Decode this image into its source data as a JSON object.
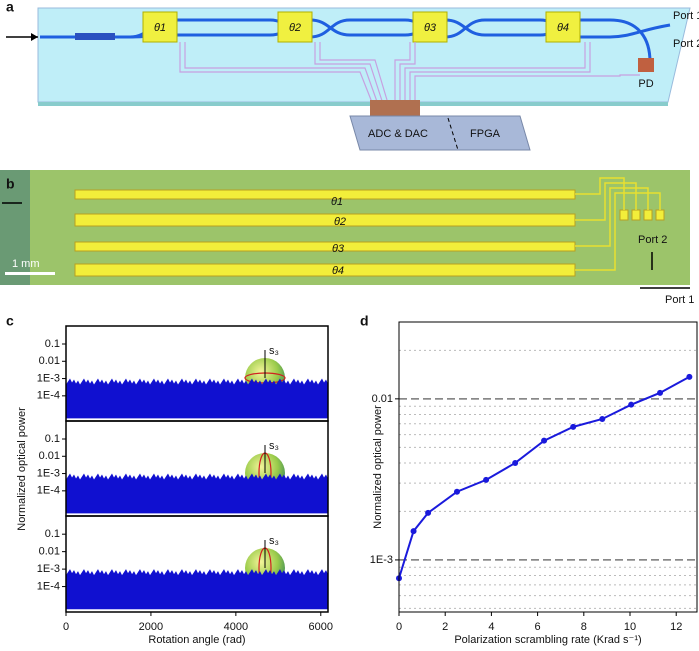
{
  "panels": {
    "a": {
      "label": "a",
      "thetas": [
        "θ1",
        "θ2",
        "θ3",
        "θ4"
      ],
      "port1": "Port 1",
      "port2": "Port 2",
      "pd": "PD",
      "adc": "ADC & DAC",
      "fpga": "FPGA"
    },
    "b": {
      "label": "b",
      "thetas": [
        "θ1",
        "θ2",
        "θ3",
        "θ4"
      ],
      "scale": "1 mm",
      "port2": "Port 2",
      "port1": "Port 1"
    },
    "c": {
      "label": "c",
      "insets": [
        [
          "s₃",
          "s₁",
          "s₂"
        ],
        [
          "s₃",
          "s₁",
          "s₂"
        ],
        [
          "s₃",
          "s₁",
          "s₂"
        ]
      ]
    },
    "d": {
      "label": "d"
    }
  },
  "chart_data": [
    {
      "type": "noise",
      "ylog": true,
      "xlim": [
        0,
        6170
      ],
      "ylim": [
        3.5e-06,
        1.1
      ],
      "color": "#1010d0",
      "yticks": [
        0.1,
        0.01,
        {
          "value": 0.001,
          "label": "1E-3"
        },
        {
          "value": 0.0001,
          "label": "1E-4"
        }
      ],
      "noise_band": [
        5e-06,
        0.001
      ]
    },
    {
      "type": "noise",
      "ylog": true,
      "xlim": [
        0,
        6170
      ],
      "ylim": [
        3.5e-06,
        1.1
      ],
      "color": "#1010d0",
      "ylabel": "Normalized optical power",
      "yticks": [
        0.1,
        0.01,
        {
          "value": 0.001,
          "label": "1E-3"
        },
        {
          "value": 0.0001,
          "label": "1E-4"
        }
      ],
      "noise_band": [
        5e-06,
        0.001
      ]
    },
    {
      "type": "noise",
      "ylog": true,
      "xlim": [
        0,
        6170
      ],
      "ylim": [
        3.5e-06,
        1.1
      ],
      "color": "#1010d0",
      "xlabel": "Rotation angle (rad)",
      "xticks": [
        0,
        2000,
        4000,
        6000
      ],
      "yticks": [
        0.1,
        0.01,
        {
          "value": 0.001,
          "label": "1E-3"
        },
        {
          "value": 0.0001,
          "label": "1E-4"
        }
      ],
      "noise_band": [
        5e-06,
        0.001
      ]
    },
    {
      "type": "line",
      "ylog": true,
      "xlim": [
        0,
        12.9
      ],
      "ylim": [
        0.000475,
        0.03
      ],
      "color": "#1a1adc",
      "xlabel": "Polarization scrambling rate (Krad s⁻¹)",
      "ylabel": "Normalized optical power",
      "xticks": [
        0,
        2,
        4,
        6,
        8,
        10,
        12
      ],
      "yticks": [
        {
          "value": 0.001,
          "label": "1E-3"
        },
        0.01
      ],
      "minor_grid": [
        0.0005,
        0.0006,
        0.0007,
        0.0008,
        0.0009,
        0.002,
        0.003,
        0.004,
        0.005,
        0.006,
        0.007,
        0.008,
        0.009,
        0.02
      ],
      "x": [
        0,
        0.63,
        1.26,
        2.51,
        3.77,
        5.03,
        6.28,
        7.54,
        8.8,
        10.05,
        11.3,
        12.57
      ],
      "values": [
        0.00077,
        0.00151,
        0.00196,
        0.00265,
        0.00314,
        0.004,
        0.0055,
        0.0067,
        0.0075,
        0.0092,
        0.0109,
        0.0137
      ]
    }
  ]
}
